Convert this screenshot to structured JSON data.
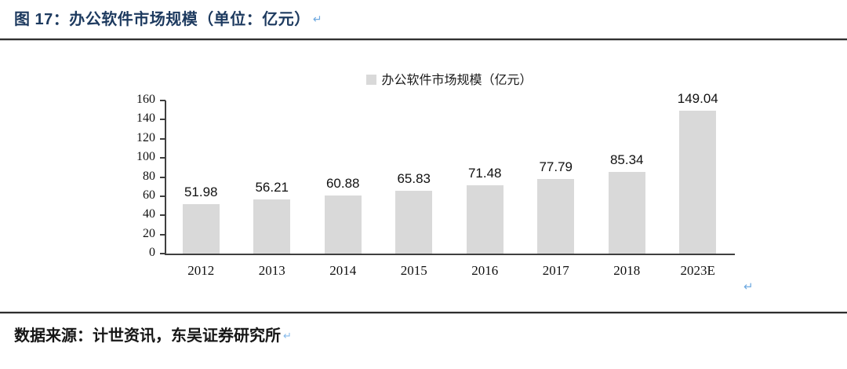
{
  "page": {
    "title": "图 17：办公软件市场规模（单位：亿元）",
    "paragraph_mark": "↵",
    "source_note": "数据来源：计世资讯，东吴证券研究所"
  },
  "colors": {
    "title_blue": "#1d3a5f",
    "bar_fill": "#d9d9d9",
    "axis_gray": "#3f3f3f",
    "paragraph_mark_blue": "#6ea9e0"
  },
  "chart_data": {
    "type": "bar",
    "title": "",
    "legend": "办公软件市场规模（亿元）",
    "legend_position": "top-center",
    "categories": [
      "2012",
      "2013",
      "2014",
      "2015",
      "2016",
      "2017",
      "2018",
      "2023E"
    ],
    "values": [
      51.98,
      56.21,
      60.88,
      65.83,
      71.48,
      77.79,
      85.34,
      149.04
    ],
    "data_labels": [
      "51.98",
      "56.21",
      "60.88",
      "65.83",
      "71.48",
      "77.79",
      "85.34",
      "149.04"
    ],
    "xlabel": "",
    "ylabel": "",
    "ylim": [
      0,
      160
    ],
    "y_ticks": [
      0,
      20,
      40,
      60,
      80,
      100,
      120,
      140,
      160
    ],
    "grid": false,
    "bar_color": "#d9d9d9"
  }
}
